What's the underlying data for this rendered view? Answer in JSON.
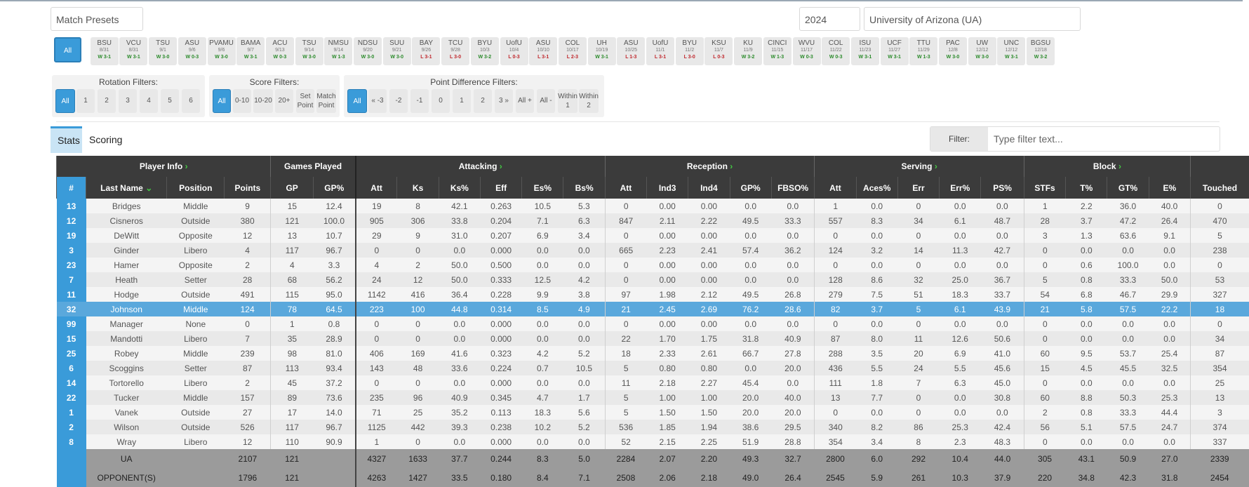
{
  "top": {
    "preset_placeholder": "Match Presets",
    "year": "2024",
    "team": "University of Arizona (UA)"
  },
  "matches": [
    {
      "o": "All",
      "d": "",
      "r": ""
    },
    {
      "o": "BSU",
      "d": "8/31",
      "r": "W 3-1"
    },
    {
      "o": "VCU",
      "d": "8/31",
      "r": "W 3-1"
    },
    {
      "o": "TSU",
      "d": "9/1",
      "r": "W 3-0"
    },
    {
      "o": "ASU",
      "d": "9/6",
      "r": "W 0-3"
    },
    {
      "o": "PVAMU",
      "d": "9/6",
      "r": "W 3-0"
    },
    {
      "o": "BAMA",
      "d": "9/7",
      "r": "W 3-1"
    },
    {
      "o": "ACU",
      "d": "9/13",
      "r": "W 0-3"
    },
    {
      "o": "TSU",
      "d": "9/14",
      "r": "W 3-0"
    },
    {
      "o": "NMSU",
      "d": "9/14",
      "r": "W 1-3"
    },
    {
      "o": "NDSU",
      "d": "9/20",
      "r": "W 3-0"
    },
    {
      "o": "SUU",
      "d": "9/21",
      "r": "W 3-0"
    },
    {
      "o": "BAY",
      "d": "9/26",
      "r": "L 3-1"
    },
    {
      "o": "TCU",
      "d": "9/28",
      "r": "L 3-0"
    },
    {
      "o": "BYU",
      "d": "10/3",
      "r": "W 3-2"
    },
    {
      "o": "UofU",
      "d": "10/4",
      "r": "L 0-3"
    },
    {
      "o": "ASU",
      "d": "10/10",
      "r": "L 3-1"
    },
    {
      "o": "COL",
      "d": "10/17",
      "r": "L 2-3"
    },
    {
      "o": "UH",
      "d": "10/19",
      "r": "W 3-1"
    },
    {
      "o": "ASU",
      "d": "10/25",
      "r": "L 1-3"
    },
    {
      "o": "UofU",
      "d": "11/1",
      "r": "L 3-1"
    },
    {
      "o": "BYU",
      "d": "11/2",
      "r": "L 3-0"
    },
    {
      "o": "KSU",
      "d": "11/7",
      "r": "L 0-3"
    },
    {
      "o": "KU",
      "d": "11/9",
      "r": "W 3-2"
    },
    {
      "o": "CINCI",
      "d": "11/15",
      "r": "W 1-3"
    },
    {
      "o": "WVU",
      "d": "11/17",
      "r": "W 0-3"
    },
    {
      "o": "COL",
      "d": "11/22",
      "r": "W 0-3"
    },
    {
      "o": "ISU",
      "d": "11/23",
      "r": "W 3-1"
    },
    {
      "o": "UCF",
      "d": "11/27",
      "r": "W 3-1"
    },
    {
      "o": "TTU",
      "d": "11/29",
      "r": "W 1-3"
    },
    {
      "o": "PAC",
      "d": "12/8",
      "r": "W 3-0"
    },
    {
      "o": "UW",
      "d": "12/12",
      "r": "W 3-0"
    },
    {
      "o": "UNC",
      "d": "12/12",
      "r": "W 3-1"
    },
    {
      "o": "BGSU",
      "d": "12/18",
      "r": "W 3-2"
    }
  ],
  "filters": {
    "rotation_title": "Rotation Filters:",
    "rotation": [
      "All",
      "1",
      "2",
      "3",
      "4",
      "5",
      "6"
    ],
    "score_title": "Score Filters:",
    "score": [
      "All",
      "0-10",
      "10-20",
      "20+",
      "Set Point",
      "Match Point"
    ],
    "point_title": "Point Difference Filters:",
    "point": [
      "All",
      "« -3",
      "-2",
      "-1",
      "0",
      "1",
      "2",
      "3 »",
      "All +",
      "All -",
      "Within 1",
      "Within 2"
    ]
  },
  "tabs": {
    "stats": "Stats",
    "scoring": "Scoring"
  },
  "filter": {
    "label": "Filter:",
    "placeholder": "Type filter text..."
  },
  "groups": {
    "player_info": "Player Info",
    "games_played": "Games Played",
    "attacking": "Attacking",
    "reception": "Reception",
    "serving": "Serving",
    "block": "Block"
  },
  "columns": [
    "#",
    "Last Name",
    "Position",
    "Points",
    "GP",
    "GP%",
    "Att",
    "Ks",
    "Ks%",
    "Eff",
    "Es%",
    "Bs%",
    "Att",
    "Ind3",
    "Ind4",
    "GP%",
    "FBSO%",
    "Att",
    "Aces%",
    "Err",
    "Err%",
    "PS%",
    "STFs",
    "T%",
    "GT%",
    "E%",
    "Touched"
  ],
  "rows": [
    [
      "13",
      "Bridges",
      "Middle",
      "9",
      "15",
      "12.4",
      "19",
      "8",
      "42.1",
      "0.263",
      "10.5",
      "5.3",
      "0",
      "0.00",
      "0.00",
      "0.0",
      "0.0",
      "1",
      "0.0",
      "0",
      "0.0",
      "0.0",
      "1",
      "2.2",
      "36.0",
      "40.0",
      "0"
    ],
    [
      "12",
      "Cisneros",
      "Outside",
      "380",
      "121",
      "100.0",
      "905",
      "306",
      "33.8",
      "0.204",
      "7.1",
      "6.3",
      "847",
      "2.11",
      "2.22",
      "49.5",
      "33.3",
      "557",
      "8.3",
      "34",
      "6.1",
      "48.7",
      "28",
      "3.7",
      "47.2",
      "26.4",
      "470"
    ],
    [
      "19",
      "DeWitt",
      "Opposite",
      "12",
      "13",
      "10.7",
      "29",
      "9",
      "31.0",
      "0.207",
      "6.9",
      "3.4",
      "0",
      "0.00",
      "0.00",
      "0.0",
      "0.0",
      "0",
      "0.0",
      "0",
      "0.0",
      "0.0",
      "3",
      "1.3",
      "63.6",
      "9.1",
      "5"
    ],
    [
      "3",
      "Ginder",
      "Libero",
      "4",
      "117",
      "96.7",
      "0",
      "0",
      "0.0",
      "0.000",
      "0.0",
      "0.0",
      "665",
      "2.23",
      "2.41",
      "57.4",
      "36.2",
      "124",
      "3.2",
      "14",
      "11.3",
      "42.7",
      "0",
      "0.0",
      "0.0",
      "0.0",
      "238"
    ],
    [
      "23",
      "Hamer",
      "Opposite",
      "2",
      "4",
      "3.3",
      "4",
      "2",
      "50.0",
      "0.500",
      "0.0",
      "0.0",
      "0",
      "0.00",
      "0.00",
      "0.0",
      "0.0",
      "0",
      "0.0",
      "0",
      "0.0",
      "0.0",
      "0",
      "0.6",
      "100.0",
      "0.0",
      "0"
    ],
    [
      "7",
      "Heath",
      "Setter",
      "28",
      "68",
      "56.2",
      "24",
      "12",
      "50.0",
      "0.333",
      "12.5",
      "4.2",
      "0",
      "0.00",
      "0.00",
      "0.0",
      "0.0",
      "128",
      "8.6",
      "32",
      "25.0",
      "36.7",
      "5",
      "0.8",
      "33.3",
      "50.0",
      "53"
    ],
    [
      "11",
      "Hodge",
      "Outside",
      "491",
      "115",
      "95.0",
      "1142",
      "416",
      "36.4",
      "0.228",
      "9.9",
      "3.8",
      "97",
      "1.98",
      "2.12",
      "49.5",
      "26.8",
      "279",
      "7.5",
      "51",
      "18.3",
      "33.7",
      "54",
      "6.8",
      "46.7",
      "29.9",
      "327"
    ],
    [
      "32",
      "Johnson",
      "Middle",
      "124",
      "78",
      "64.5",
      "223",
      "100",
      "44.8",
      "0.314",
      "8.5",
      "4.9",
      "21",
      "2.45",
      "2.69",
      "76.2",
      "28.6",
      "82",
      "3.7",
      "5",
      "6.1",
      "43.9",
      "21",
      "5.8",
      "57.5",
      "22.2",
      "18"
    ],
    [
      "99",
      "Manager",
      "None",
      "0",
      "1",
      "0.8",
      "0",
      "0",
      "0.0",
      "0.000",
      "0.0",
      "0.0",
      "0",
      "0.00",
      "0.00",
      "0.0",
      "0.0",
      "0",
      "0.0",
      "0",
      "0.0",
      "0.0",
      "0",
      "0.0",
      "0.0",
      "0.0",
      "0"
    ],
    [
      "15",
      "Mandotti",
      "Libero",
      "7",
      "35",
      "28.9",
      "0",
      "0",
      "0.0",
      "0.000",
      "0.0",
      "0.0",
      "22",
      "1.70",
      "1.75",
      "31.8",
      "40.9",
      "87",
      "8.0",
      "11",
      "12.6",
      "50.6",
      "0",
      "0.0",
      "0.0",
      "0.0",
      "34"
    ],
    [
      "25",
      "Robey",
      "Middle",
      "239",
      "98",
      "81.0",
      "406",
      "169",
      "41.6",
      "0.323",
      "4.2",
      "5.2",
      "18",
      "2.33",
      "2.61",
      "66.7",
      "27.8",
      "288",
      "3.5",
      "20",
      "6.9",
      "41.0",
      "60",
      "9.5",
      "53.7",
      "25.4",
      "87"
    ],
    [
      "6",
      "Scoggins",
      "Setter",
      "87",
      "113",
      "93.4",
      "143",
      "48",
      "33.6",
      "0.224",
      "0.7",
      "10.5",
      "5",
      "0.80",
      "0.80",
      "0.0",
      "20.0",
      "436",
      "5.5",
      "24",
      "5.5",
      "45.6",
      "15",
      "4.5",
      "45.5",
      "32.5",
      "354"
    ],
    [
      "14",
      "Tortorello",
      "Libero",
      "2",
      "45",
      "37.2",
      "0",
      "0",
      "0.0",
      "0.000",
      "0.0",
      "0.0",
      "11",
      "2.18",
      "2.27",
      "45.4",
      "0.0",
      "111",
      "1.8",
      "7",
      "6.3",
      "45.0",
      "0",
      "0.0",
      "0.0",
      "0.0",
      "25"
    ],
    [
      "22",
      "Tucker",
      "Middle",
      "157",
      "89",
      "73.6",
      "235",
      "96",
      "40.9",
      "0.345",
      "4.7",
      "1.7",
      "5",
      "1.00",
      "1.00",
      "20.0",
      "40.0",
      "13",
      "7.7",
      "0",
      "0.0",
      "30.8",
      "60",
      "8.8",
      "50.3",
      "25.3",
      "13"
    ],
    [
      "1",
      "Vanek",
      "Outside",
      "27",
      "17",
      "14.0",
      "71",
      "25",
      "35.2",
      "0.113",
      "18.3",
      "5.6",
      "5",
      "1.50",
      "1.50",
      "20.0",
      "20.0",
      "0",
      "0.0",
      "0",
      "0.0",
      "0.0",
      "2",
      "0.8",
      "33.3",
      "44.4",
      "3"
    ],
    [
      "2",
      "Wilson",
      "Outside",
      "526",
      "117",
      "96.7",
      "1125",
      "442",
      "39.3",
      "0.238",
      "10.2",
      "5.2",
      "536",
      "1.85",
      "1.94",
      "38.6",
      "29.5",
      "340",
      "8.2",
      "86",
      "25.3",
      "42.4",
      "56",
      "5.1",
      "57.5",
      "24.7",
      "374"
    ],
    [
      "8",
      "Wray",
      "Libero",
      "12",
      "110",
      "90.9",
      "1",
      "0",
      "0.0",
      "0.000",
      "0.0",
      "0.0",
      "52",
      "2.15",
      "2.25",
      "51.9",
      "28.8",
      "354",
      "3.4",
      "8",
      "2.3",
      "48.3",
      "0",
      "0.0",
      "0.0",
      "0.0",
      "337"
    ]
  ],
  "highlight_row": 7,
  "totals": [
    [
      "",
      "UA",
      "",
      "2107",
      "121",
      "",
      "4327",
      "1633",
      "37.7",
      "0.244",
      "8.3",
      "5.0",
      "2284",
      "2.07",
      "2.20",
      "49.3",
      "32.7",
      "2800",
      "6.0",
      "292",
      "10.4",
      "44.0",
      "305",
      "43.1",
      "50.9",
      "27.0",
      "2339"
    ],
    [
      "",
      "OPPONENT(S)",
      "",
      "1796",
      "121",
      "",
      "4263",
      "1427",
      "33.5",
      "0.180",
      "8.4",
      "7.1",
      "2508",
      "2.06",
      "2.18",
      "49.0",
      "26.4",
      "2545",
      "5.9",
      "261",
      "10.3",
      "37.9",
      "220",
      "34.8",
      "42.3",
      "31.8",
      "2454"
    ]
  ],
  "colors": {
    "accent": "#3a9bd9",
    "header": "#3b3b3b",
    "win": "#2a8a2a",
    "loss": "#c0282d"
  }
}
